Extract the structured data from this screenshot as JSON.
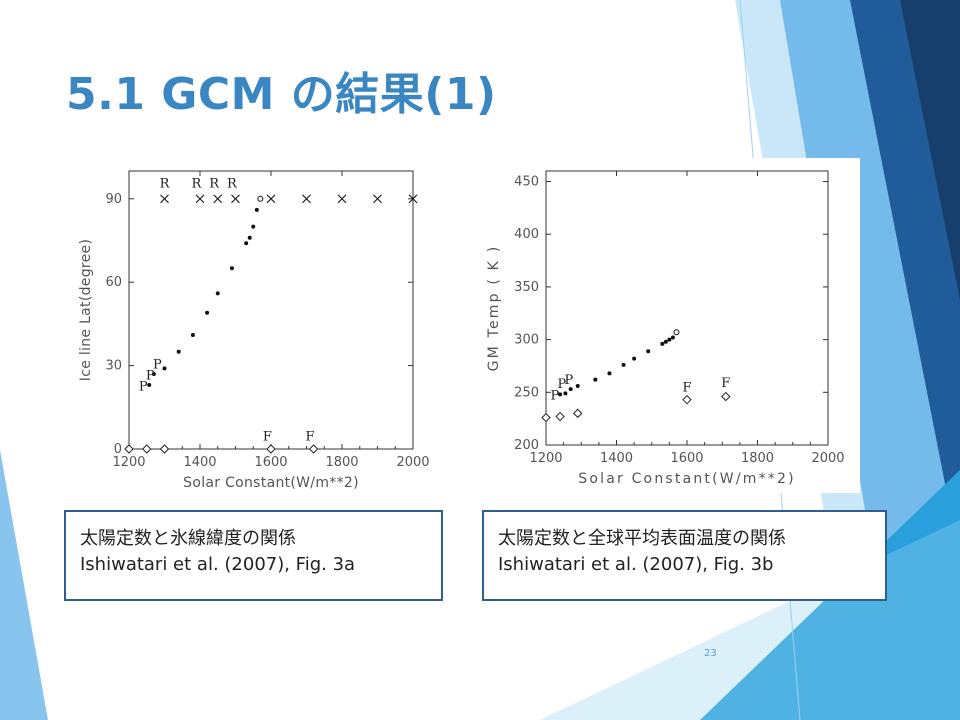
{
  "slide": {
    "title": "5.1 GCM の結果(1)",
    "page_number": "23",
    "accent_colors": [
      "#1F5C99",
      "#2E75B6",
      "#5FB0E8",
      "#9CD3F2",
      "#29A0DB"
    ]
  },
  "captions": {
    "a": {
      "line1": "太陽定数と氷線緯度の関係",
      "line2": "Ishiwatari et al. (2007), Fig. 3a"
    },
    "b": {
      "line1": "太陽定数と全球平均表面温度の関係",
      "line2": "Ishiwatari et al. (2007), Fig. 3b"
    }
  },
  "chart_data": [
    {
      "type": "scatter",
      "xlabel": "Solar Constant(W/m**2)",
      "ylabel": "Ice line Lat(degree)",
      "xlim": [
        1200,
        2000
      ],
      "ylim": [
        0,
        100
      ],
      "x_ticks": [
        1200,
        1400,
        1600,
        1800,
        2000
      ],
      "y_ticks": [
        0,
        30,
        60,
        90
      ],
      "grid": false,
      "series": [
        {
          "marker": "dot",
          "points": [
            [
              1257,
              23
            ],
            [
              1270,
              27
            ],
            [
              1300,
              29
            ],
            [
              1340,
              35
            ],
            [
              1380,
              41
            ],
            [
              1420,
              49
            ],
            [
              1450,
              56
            ],
            [
              1490,
              65
            ],
            [
              1530,
              74
            ],
            [
              1540,
              76
            ],
            [
              1550,
              80
            ],
            [
              1560,
              86
            ]
          ]
        },
        {
          "marker": "open-circle",
          "points": [
            [
              1570,
              90
            ]
          ]
        },
        {
          "marker": "x",
          "points": [
            [
              1300,
              90
            ],
            [
              1400,
              90
            ],
            [
              1450,
              90
            ],
            [
              1500,
              90
            ],
            [
              1600,
              90
            ],
            [
              1700,
              90
            ],
            [
              1800,
              90
            ],
            [
              1900,
              90
            ],
            [
              2000,
              90
            ]
          ]
        },
        {
          "marker": "diamond",
          "points": [
            [
              1200,
              0
            ],
            [
              1250,
              0
            ],
            [
              1300,
              0
            ],
            [
              1600,
              0
            ],
            [
              1720,
              0
            ]
          ]
        }
      ],
      "annotations": [
        {
          "text": "R",
          "x": 1300,
          "y": 94
        },
        {
          "text": "R",
          "x": 1390,
          "y": 94
        },
        {
          "text": "R",
          "x": 1440,
          "y": 94
        },
        {
          "text": "R",
          "x": 1490,
          "y": 94
        },
        {
          "text": "P",
          "x": 1240,
          "y": 21
        },
        {
          "text": "P",
          "x": 1260,
          "y": 25
        },
        {
          "text": "P",
          "x": 1280,
          "y": 29
        },
        {
          "text": "F",
          "x": 1590,
          "y": 3
        },
        {
          "text": "F",
          "x": 1710,
          "y": 3
        }
      ]
    },
    {
      "type": "scatter",
      "xlabel": "Solar Constant(W/m**2)",
      "ylabel": "GM Temp ( K )",
      "xlim": [
        1200,
        2000
      ],
      "ylim": [
        200,
        460
      ],
      "x_ticks": [
        1200,
        1400,
        1600,
        1800,
        2000
      ],
      "y_ticks": [
        200,
        250,
        300,
        350,
        400,
        450
      ],
      "grid": false,
      "series": [
        {
          "marker": "dot",
          "points": [
            [
              1240,
              248
            ],
            [
              1255,
              249
            ],
            [
              1270,
              253
            ],
            [
              1290,
              256
            ],
            [
              1340,
              262
            ],
            [
              1380,
              268
            ],
            [
              1420,
              276
            ],
            [
              1450,
              282
            ],
            [
              1490,
              289
            ],
            [
              1530,
              296
            ],
            [
              1540,
              298
            ],
            [
              1550,
              300
            ],
            [
              1560,
              302
            ]
          ]
        },
        {
          "marker": "open-circle",
          "points": [
            [
              1570,
              307
            ]
          ]
        },
        {
          "marker": "diamond",
          "points": [
            [
              1200,
              226
            ],
            [
              1240,
              227
            ],
            [
              1290,
              230
            ],
            [
              1600,
              243
            ],
            [
              1710,
              246
            ]
          ]
        }
      ],
      "annotations": [
        {
          "text": "P",
          "x": 1225,
          "y": 243
        },
        {
          "text": "P",
          "x": 1245,
          "y": 254
        },
        {
          "text": "P",
          "x": 1265,
          "y": 258
        },
        {
          "text": "F",
          "x": 1600,
          "y": 251
        },
        {
          "text": "F",
          "x": 1710,
          "y": 255
        }
      ]
    }
  ]
}
